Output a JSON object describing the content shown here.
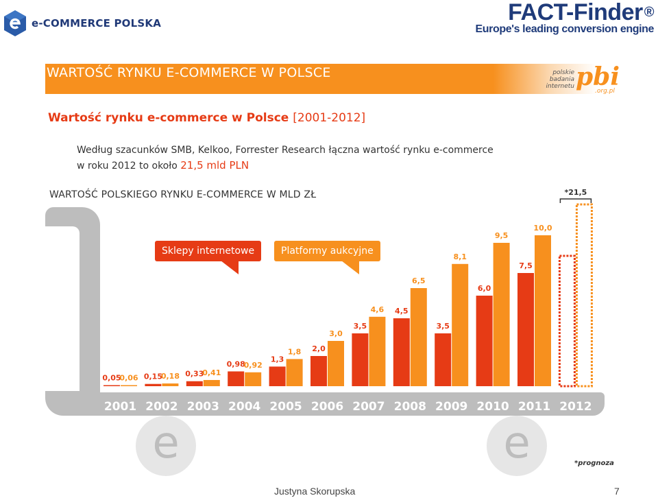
{
  "header": {
    "logo_left_text": "e-COMMERCE POLSKA",
    "logo_right_title": "FACT-Finder",
    "logo_right_reg": "®",
    "logo_right_tagline": "Europe's leading conversion engine"
  },
  "banner": {
    "title": "WARTOŚĆ RYNKU E-COMMERCE W POLSCE",
    "pbi_small": "polskie\nbadania\ninternetu",
    "pbi_big": "pbi",
    "pbi_domain": ".org.pl"
  },
  "subtitle": {
    "main": "Wartość rynku e-commerce w Polsce",
    "range": "[2001-2012]"
  },
  "paragraph": {
    "line1": "Według szacunków SMB, Kelkoo, Forrester Research łączna wartość rynku e-commerce",
    "line2_prefix": "w roku 2012 to około ",
    "line2_highlight": "21,5 mld PLN"
  },
  "chart_heading": "WARTOŚĆ POLSKIEGO RYNKU E-COMMERCE W MLD ZŁ",
  "bubbles": {
    "shops": "Sklepy internetowe",
    "auctions": "Platformy aukcyjne"
  },
  "colors": {
    "shops": "#e63b15",
    "auctions": "#f7901e",
    "cart": "#bdbdbd"
  },
  "chart_data": {
    "type": "bar",
    "categories": [
      "2001",
      "2002",
      "2003",
      "2004",
      "2005",
      "2006",
      "2007",
      "2008",
      "2009",
      "2010",
      "2011",
      "2012"
    ],
    "series": [
      {
        "name": "Sklepy internetowe",
        "values": [
          0.05,
          0.15,
          0.33,
          0.98,
          1.3,
          2.0,
          3.5,
          4.5,
          3.5,
          6.0,
          7.5,
          null
        ],
        "labels": [
          "0,05",
          "0,15",
          "0,33",
          "0,98",
          "1,3",
          "2,0",
          "3,5",
          "4,5",
          "3,5",
          "6,0",
          "7,5",
          ""
        ]
      },
      {
        "name": "Platformy aukcyjne",
        "values": [
          0.06,
          0.18,
          0.41,
          0.92,
          1.8,
          3.0,
          4.6,
          6.5,
          8.1,
          9.5,
          10.0,
          null
        ],
        "labels": [
          "0,06",
          "0,18",
          "0,41",
          "0,92",
          "1,8",
          "3,0",
          "4,6",
          "6,5",
          "8,1",
          "9,5",
          "10,0",
          ""
        ]
      }
    ],
    "forecast": {
      "category": "2012",
      "total_label": "*21,5",
      "total": 21.5,
      "style": "dashed"
    },
    "ylim": [
      0,
      21.5
    ],
    "grid": false,
    "legend": "speech-bubbles top-left"
  },
  "forecast_note": "*prognoza",
  "footer": {
    "author": "Justyna Skorupska",
    "page": "7"
  }
}
